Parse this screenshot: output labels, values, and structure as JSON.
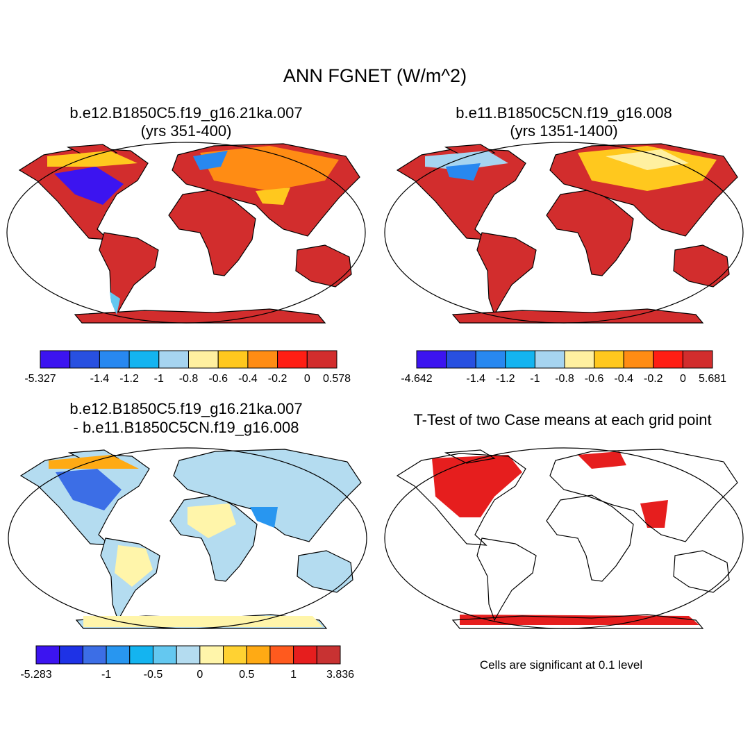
{
  "title": "ANN FGNET (W/m^2)",
  "panels": [
    {
      "title": [
        "b.e12.B1850C5.f19_g16.21ka.007",
        "(yrs 351-400)"
      ],
      "colorbar": {
        "colors": [
          "#3c14f0",
          "#2850e0",
          "#2888f0",
          "#14b4f0",
          "#a6d4f0",
          "#fff0a0",
          "#ffc81e",
          "#ff8c14",
          "#ff1e14",
          "#d22d2d"
        ],
        "labels": [
          "-5.327",
          null,
          "-1.4",
          "-1.2",
          "-1",
          "-0.8",
          "-0.6",
          "-0.4",
          "-0.2",
          "0",
          "0.578"
        ]
      }
    },
    {
      "title": [
        "b.e11.B1850C5CN.f19_g16.008",
        "(yrs 1351-1400)"
      ],
      "colorbar": {
        "colors": [
          "#3c14f0",
          "#2850e0",
          "#2888f0",
          "#14b4f0",
          "#a6d4f0",
          "#fff0a0",
          "#ffc81e",
          "#ff8c14",
          "#ff1e14",
          "#d22d2d"
        ],
        "labels": [
          "-4.642",
          null,
          "-1.4",
          "-1.2",
          "-1",
          "-0.8",
          "-0.6",
          "-0.4",
          "-0.2",
          "0",
          "5.681"
        ]
      }
    },
    {
      "title": [
        "b.e12.B1850C5.f19_g16.21ka.007",
        "- b.e11.B1850C5CN.f19_g16.008"
      ],
      "colorbar": {
        "colors": [
          "#3c14f0",
          "#1e32e6",
          "#3c6ee6",
          "#2896f0",
          "#14b4f0",
          "#64c8f0",
          "#b4dcf0",
          "#fff5aa",
          "#ffd232",
          "#ffaa14",
          "#ff5a1e",
          "#e61e1e",
          "#c83232"
        ],
        "labels": [
          "-5.283",
          null,
          null,
          "-1",
          null,
          "-0.5",
          null,
          "0",
          null,
          "0.5",
          null,
          "1",
          null,
          "3.836"
        ]
      }
    },
    {
      "title": [
        "T-Test of two Case means at each grid point"
      ],
      "note": "Cells are significant at 0.1 level"
    }
  ]
}
